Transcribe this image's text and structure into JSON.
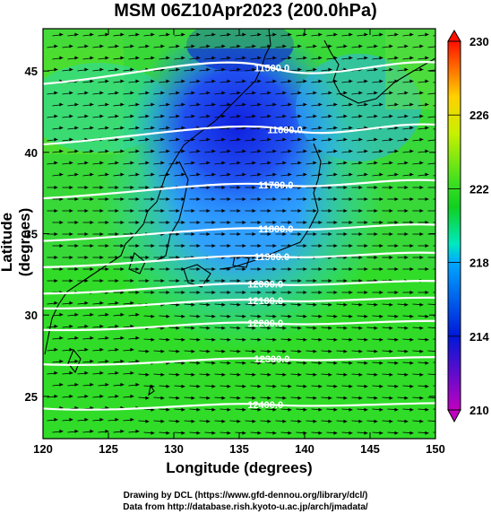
{
  "title": "MSM 06Z10Apr2023 (200.0hPa)",
  "x_axis": {
    "label": "Longitude (degrees)",
    "ticks": [
      "120",
      "125",
      "130",
      "135",
      "140",
      "145",
      "150"
    ],
    "range": [
      120,
      150
    ]
  },
  "y_axis": {
    "label": "Latitude  (degrees)",
    "ticks": [
      "25",
      "30",
      "35",
      "40",
      "45"
    ],
    "range": [
      22.4,
      47.6
    ]
  },
  "colorbar": {
    "ticks": [
      "210",
      "214",
      "218",
      "222",
      "226",
      "230"
    ],
    "range": [
      210,
      230
    ]
  },
  "contours": [
    {
      "label": "11500.0",
      "lon": 137.5,
      "lat": 45.2
    },
    {
      "label": "11600.0",
      "lon": 138.5,
      "lat": 41.4
    },
    {
      "label": "11700.0",
      "lon": 137.8,
      "lat": 38.0
    },
    {
      "label": "11800.0",
      "lon": 137.8,
      "lat": 35.3
    },
    {
      "label": "11900.0",
      "lon": 137.5,
      "lat": 33.6
    },
    {
      "label": "12000.0",
      "lon": 137.0,
      "lat": 31.9
    },
    {
      "label": "12100.0",
      "lon": 137.0,
      "lat": 30.9
    },
    {
      "label": "12200.0",
      "lon": 137.0,
      "lat": 29.5
    },
    {
      "label": "12300.0",
      "lon": 137.5,
      "lat": 27.3
    },
    {
      "label": "12400.0",
      "lon": 137.0,
      "lat": 24.5
    }
  ],
  "credits": {
    "line1": "Drawing by DCL (https://www.gfd-dennou.org/library/dcl/)",
    "line2": "Data from http://database.rish.kyoto-u.ac.jp/arch/jmadata/"
  },
  "colors": {
    "low": "#c000c0",
    "mid_low": "#0018d8",
    "mid": "#00c8ff",
    "mid_high": "#20e020",
    "high": "#ff2000",
    "contour": "#ffffff",
    "arrow": "#000000"
  }
}
